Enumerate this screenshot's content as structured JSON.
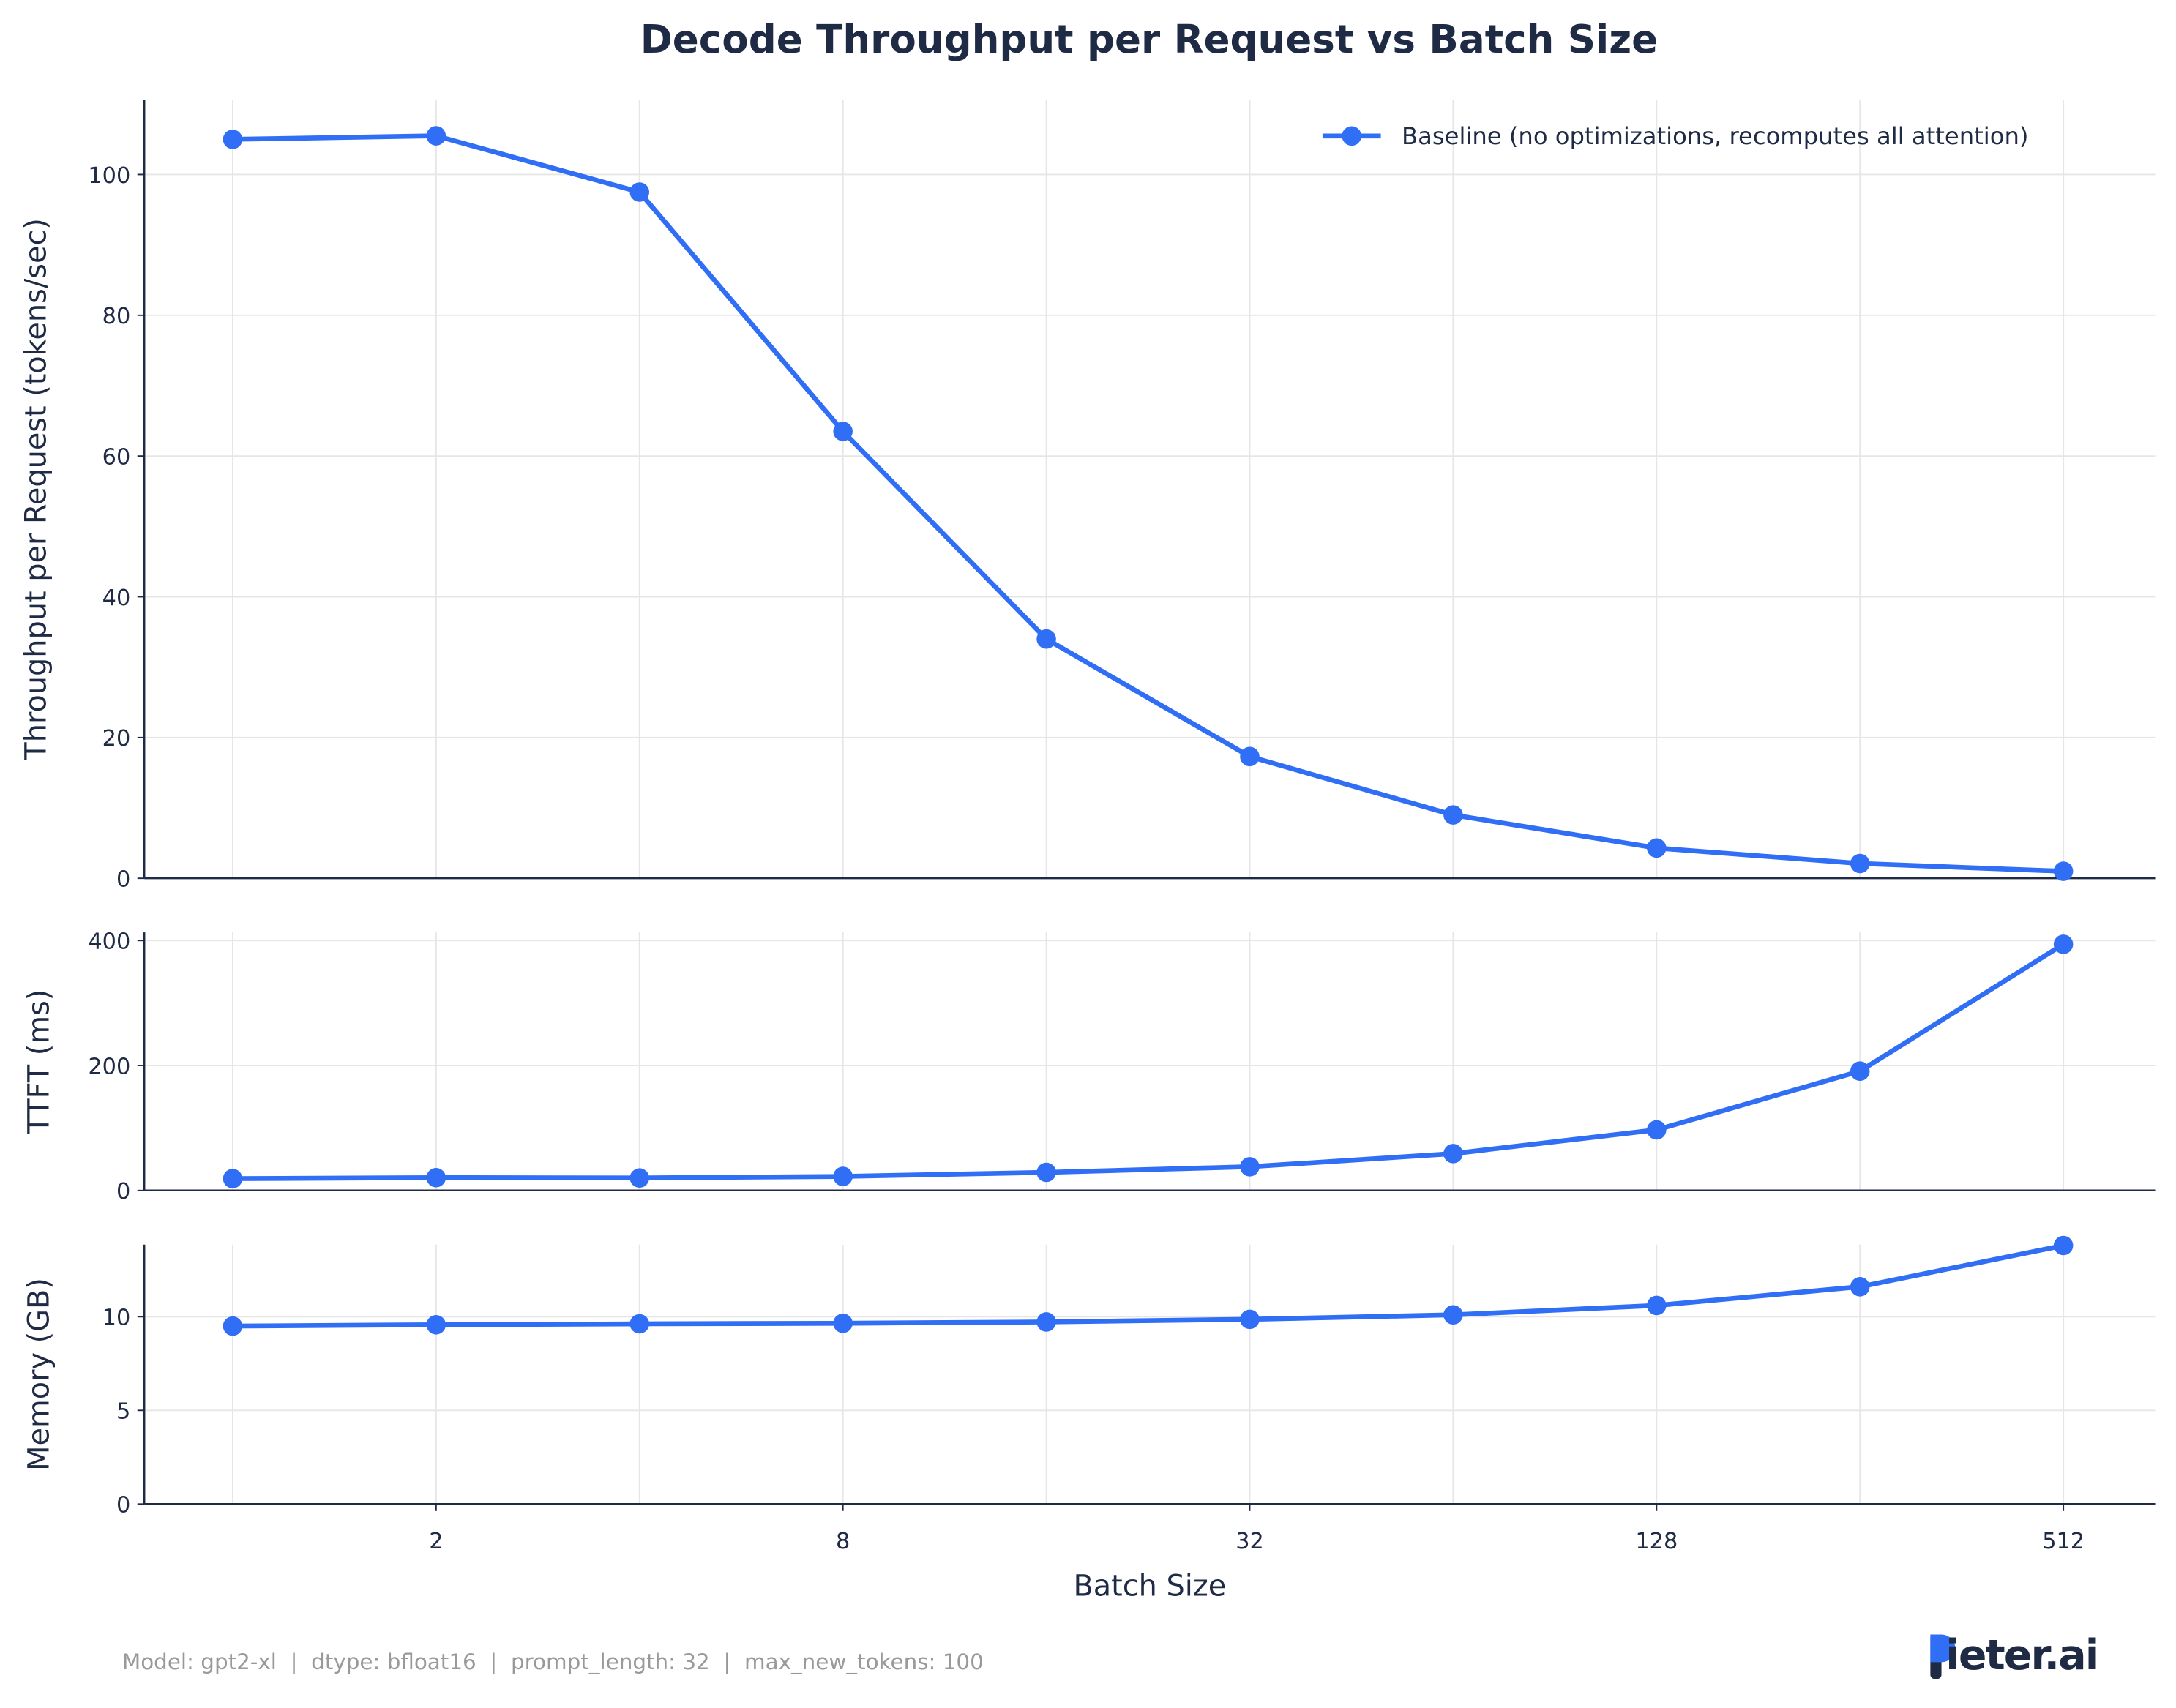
{
  "title": "Decode Throughput per Request vs Batch Size",
  "footer": "Model: gpt2-xl  |  dtype: bfloat16  |  prompt_length: 32  |  max_new_tokens: 100",
  "logo_text": "pieter.ai",
  "colors": {
    "series": "#2f6ef5",
    "text": "#1f2a44",
    "grid": "#e6e6e6",
    "footer": "#999999",
    "axis": "#1f2a44"
  },
  "chart_data": [
    {
      "type": "line",
      "title": "Decode Throughput per Request vs Batch Size",
      "ylabel": "Throughput per Request (tokens/sec)",
      "xscale": "log2",
      "x": [
        1,
        2,
        4,
        8,
        16,
        32,
        64,
        128,
        256,
        512
      ],
      "xlim": [
        0.74,
        700
      ],
      "ylim": [
        0,
        110.6
      ],
      "yticks": [
        0,
        20,
        40,
        60,
        80,
        100
      ],
      "grid": true,
      "legend": "top-right",
      "series": [
        {
          "name": "Baseline (no optimizations, recomputes all attention)",
          "values": [
            105.0,
            105.5,
            97.5,
            63.5,
            34.0,
            17.3,
            9.0,
            4.3,
            2.1,
            1.0
          ]
        }
      ]
    },
    {
      "type": "line",
      "ylabel": "TTFT (ms)",
      "xscale": "log2",
      "x": [
        1,
        2,
        4,
        8,
        16,
        32,
        64,
        128,
        256,
        512
      ],
      "xlim": [
        0.74,
        700
      ],
      "ylim": [
        0,
        413
      ],
      "yticks": [
        0,
        200,
        400
      ],
      "grid": true,
      "series": [
        {
          "values": [
            19,
            20.5,
            20,
            22.5,
            29,
            38,
            59,
            97,
            191,
            394
          ]
        }
      ]
    },
    {
      "type": "line",
      "ylabel": "Memory (GB)",
      "xlabel": "Batch Size",
      "xscale": "log2",
      "x": [
        1,
        2,
        4,
        8,
        16,
        32,
        64,
        128,
        256,
        512
      ],
      "xticks": [
        2,
        8,
        32,
        128,
        512
      ],
      "xlim": [
        0.74,
        700
      ],
      "ylim": [
        0,
        13.85
      ],
      "yticks": [
        0,
        5,
        10
      ],
      "grid": true,
      "series": [
        {
          "values": [
            9.5,
            9.57,
            9.62,
            9.65,
            9.72,
            9.86,
            10.1,
            10.6,
            11.6,
            13.8
          ]
        }
      ]
    }
  ]
}
